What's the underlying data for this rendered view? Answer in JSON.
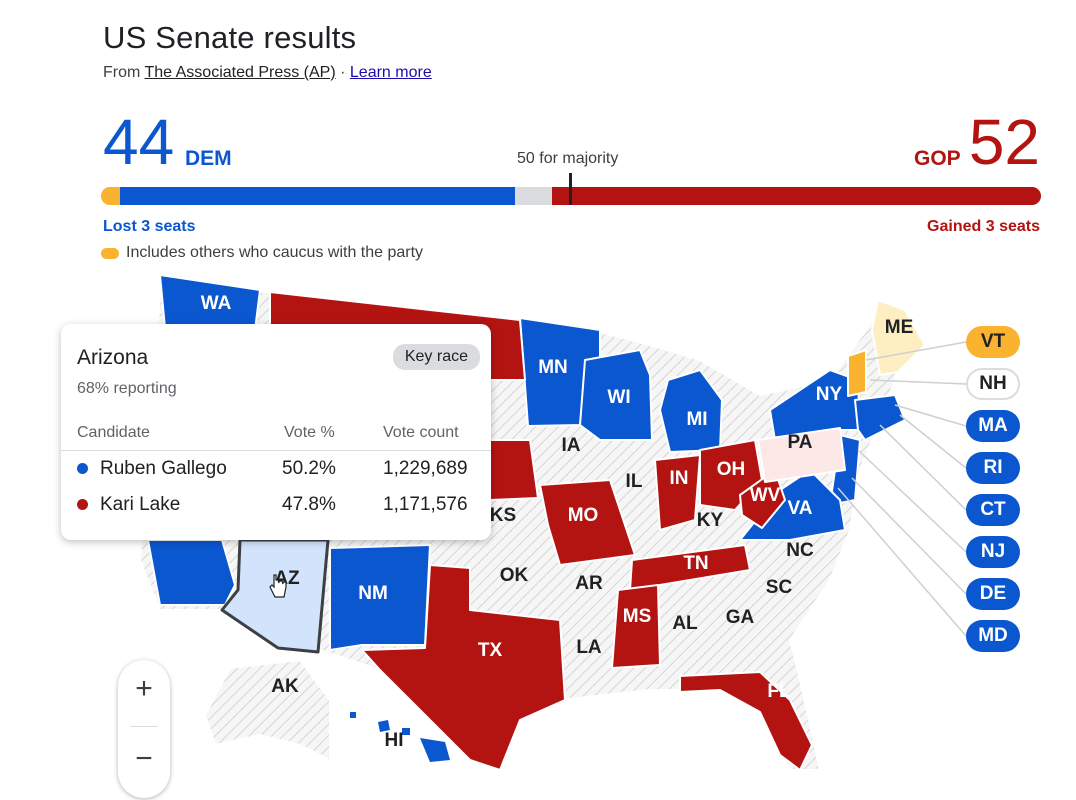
{
  "header": {
    "title": "US Senate results",
    "source_prefix": "From",
    "source_name": "The Associated Press (AP)",
    "separator": "·",
    "learn_more": "Learn more"
  },
  "tally": {
    "dem_seats": "44",
    "dem_label": "DEM",
    "gop_seats": "52",
    "gop_label": "GOP",
    "majority_label": "50 for majority",
    "dem_change": "Lost 3 seats",
    "gop_change": "Gained 3 seats",
    "caucus_note": "Includes others who caucus with the party",
    "bar": {
      "total": 100,
      "majority": 50,
      "dem_other": 2,
      "dem": 44,
      "undecided": 4,
      "gop": 52
    },
    "colors": {
      "dem": "#0b57d0",
      "gop": "#b31412",
      "other": "#f9b32e",
      "undecided": "#dadce0"
    }
  },
  "map": {
    "states": {
      "WA": "WA",
      "ME": "ME",
      "MN": "MN",
      "WI": "WI",
      "MI": "MI",
      "NY": "NY",
      "IA": "IA",
      "PA": "PA",
      "IL": "IL",
      "IN": "IN",
      "OH": "OH",
      "WV": "WV",
      "KS": "KS",
      "MO": "MO",
      "KY": "KY",
      "VA": "VA",
      "NC": "NC",
      "TN": "TN",
      "OK": "OK",
      "AR": "AR",
      "AZ": "AZ",
      "NM": "NM",
      "SC": "SC",
      "MS": "MS",
      "AL": "AL",
      "GA": "GA",
      "TX": "TX",
      "LA": "LA",
      "AK": "AK",
      "FL": "FL",
      "HI": "HI"
    },
    "side_chips": [
      "VT",
      "NH",
      "MA",
      "RI",
      "CT",
      "NJ",
      "DE",
      "MD"
    ],
    "colors": {
      "dem": "#0b57d0",
      "gop": "#b31412",
      "no_race": "#f1f3f4",
      "dem_lean": "#fce8e6",
      "ind_lean": "#feefc3",
      "ind": "#f9b32e",
      "selected": "#d2e3fc"
    }
  },
  "tooltip": {
    "state": "Arizona",
    "badge": "Key race",
    "reporting": "68% reporting",
    "col_candidate": "Candidate",
    "col_vote_pct": "Vote %",
    "col_vote_count": "Vote count",
    "rows": [
      {
        "name": "Ruben Gallego",
        "pct": "50.2%",
        "count": "1,229,689",
        "color": "#0b57d0"
      },
      {
        "name": "Kari Lake",
        "pct": "47.8%",
        "count": "1,171,576",
        "color": "#b31412"
      }
    ]
  },
  "zoom": {
    "in": "+",
    "out": "−"
  }
}
